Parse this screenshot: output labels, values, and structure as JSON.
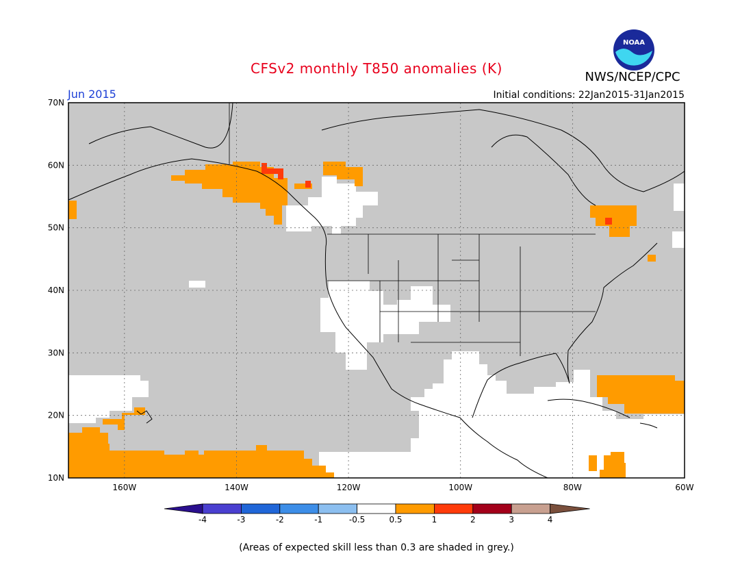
{
  "title": "CFSv2 monthly T850 anomalies (K)",
  "agency": "NWS/NCEP/CPC",
  "logo_text": "NOAA",
  "month": "Jun 2015",
  "initial_conditions": "Initial conditions: 22Jan2015-31Jan2015",
  "footnote": "(Areas of expected skill less than 0.3 are shaded in grey.)",
  "lat_labels": [
    "70N",
    "60N",
    "50N",
    "40N",
    "30N",
    "20N",
    "10N"
  ],
  "lon_labels": [
    "160W",
    "140W",
    "120W",
    "100W",
    "80W",
    "60W"
  ],
  "colorbar": {
    "ticks": [
      "-4",
      "-3",
      "-2",
      "-1",
      "-0.5",
      "0.5",
      "1",
      "2",
      "3",
      "4"
    ],
    "colors": [
      "#2a0f8e",
      "#4a3fd0",
      "#2066d8",
      "#3d8ee8",
      "#8cbff0",
      "#ffffff",
      "#ff9b00",
      "#ff3b0a",
      "#a3001a",
      "#c8a090",
      "#7a4f3c"
    ]
  },
  "map_colors": {
    "grey": "#c8c8c8",
    "white": "#ffffff",
    "orange": "#ff9b00",
    "red": "#ff3b0a"
  }
}
